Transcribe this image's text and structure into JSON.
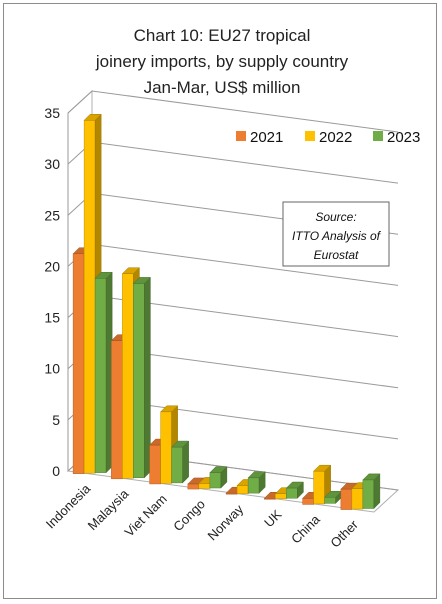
{
  "chart_data": {
    "type": "bar",
    "title_lines": [
      "Chart 10: EU27 tropical",
      "joinery imports, by supply country",
      "Jan-Mar, US$ million"
    ],
    "categories": [
      "Indonesia",
      "Malaysia",
      "Viet Nam",
      "Congo",
      "Norway",
      "UK",
      "China",
      "Other"
    ],
    "series": [
      {
        "name": "2021",
        "values": [
          21.5,
          13.5,
          3.8,
          0.5,
          0.1,
          0.1,
          0.6,
          2.0
        ]
      },
      {
        "name": "2022",
        "values": [
          34.5,
          20.0,
          7.0,
          0.5,
          0.8,
          0.5,
          3.2,
          2.0
        ]
      },
      {
        "name": "2023",
        "values": [
          19.0,
          19.0,
          3.5,
          1.5,
          1.5,
          1.0,
          0.6,
          2.8
        ]
      }
    ],
    "colors": [
      "#ed7d31",
      "#ffc000",
      "#70ad47"
    ],
    "ylim": [
      0,
      35
    ],
    "yticks": [
      "0",
      "5",
      "10",
      "15",
      "20",
      "25",
      "30",
      "35"
    ],
    "xlabel": "",
    "ylabel": "",
    "legend_position": "top-right",
    "grid": true,
    "annotation_lines": [
      "Source:",
      "ITTO Analysis of",
      "Eurostat"
    ]
  }
}
